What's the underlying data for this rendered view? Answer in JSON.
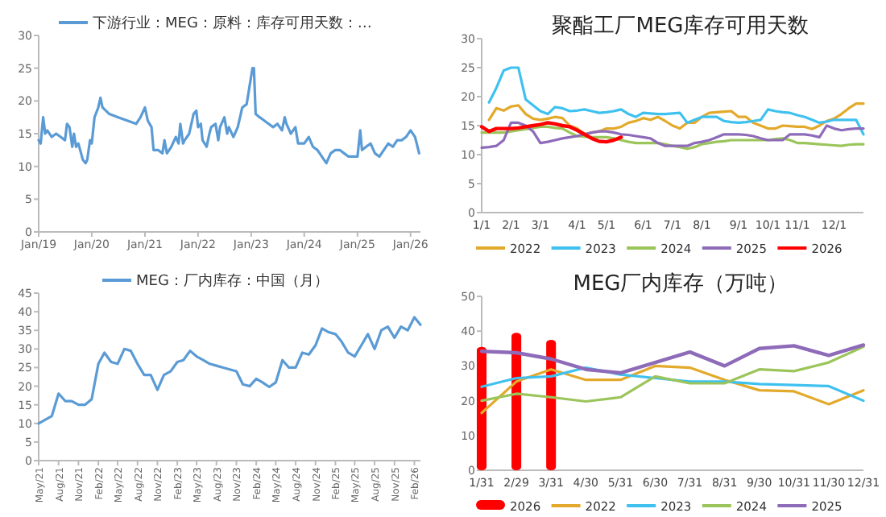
{
  "chart_data": [
    {
      "type": "line",
      "legend": "top",
      "ylim": [
        0,
        30
      ],
      "yticks": [
        0,
        5,
        10,
        15,
        20,
        25,
        30
      ],
      "xlim": [
        "2019-01-01",
        "2026-03-10"
      ],
      "xticks": [
        {
          "value": "2019-01-01",
          "label": "Jan/19"
        },
        {
          "value": "2020-01-01",
          "label": "Jan/20"
        },
        {
          "value": "2021-01-01",
          "label": "Jan/21"
        },
        {
          "value": "2022-01-01",
          "label": "Jan/22"
        },
        {
          "value": "2023-01-01",
          "label": "Jan/23"
        },
        {
          "value": "2024-01-01",
          "label": "Jan/24"
        },
        {
          "value": "2025-01-01",
          "label": "Jan/25"
        },
        {
          "value": "2026-01-01",
          "label": "Jan/26"
        }
      ],
      "series": [
        {
          "name": "下游行业：MEG：原料：库存可用天数：…",
          "color": "#5b9bd5",
          "x": [
            "2019-01-01",
            "2019-01-15",
            "2019-02-01",
            "2019-02-15",
            "2019-03-01",
            "2019-04-01",
            "2019-05-01",
            "2019-06-01",
            "2019-07-01",
            "2019-07-15",
            "2019-08-01",
            "2019-08-20",
            "2019-09-01",
            "2019-09-15",
            "2019-10-01",
            "2019-11-01",
            "2019-11-20",
            "2019-12-01",
            "2019-12-20",
            "2020-01-01",
            "2020-01-20",
            "2020-02-15",
            "2020-03-01",
            "2020-03-15",
            "2020-05-01",
            "2020-07-01",
            "2020-09-01",
            "2020-11-01",
            "2020-12-01",
            "2021-01-01",
            "2021-01-20",
            "2021-02-15",
            "2021-03-01",
            "2021-04-01",
            "2021-05-01",
            "2021-05-15",
            "2021-06-01",
            "2021-07-01",
            "2021-08-01",
            "2021-08-20",
            "2021-09-01",
            "2021-09-20",
            "2021-10-01",
            "2021-11-01",
            "2021-12-01",
            "2021-12-20",
            "2022-01-01",
            "2022-01-20",
            "2022-02-01",
            "2022-03-01",
            "2022-03-20",
            "2022-04-01",
            "2022-05-01",
            "2022-05-20",
            "2022-06-01",
            "2022-07-01",
            "2022-07-20",
            "2022-08-01",
            "2022-09-01",
            "2022-10-01",
            "2022-11-01",
            "2022-12-01",
            "2023-01-10",
            "2023-01-20",
            "2023-02-01",
            "2023-03-01",
            "2023-04-01",
            "2023-05-01",
            "2023-06-01",
            "2023-07-01",
            "2023-08-01",
            "2023-08-20",
            "2023-09-01",
            "2023-10-01",
            "2023-11-01",
            "2023-11-20",
            "2024-01-01",
            "2024-02-01",
            "2024-03-01",
            "2024-04-01",
            "2024-05-01",
            "2024-06-01",
            "2024-07-01",
            "2024-08-01",
            "2024-09-01",
            "2024-10-01",
            "2024-11-01",
            "2024-12-01",
            "2025-01-01",
            "2025-01-20",
            "2025-02-01",
            "2025-03-01",
            "2025-04-01",
            "2025-05-01",
            "2025-06-01",
            "2025-07-01",
            "2025-08-01",
            "2025-09-01",
            "2025-10-01",
            "2025-11-01",
            "2025-12-01",
            "2026-01-01",
            "2026-02-01",
            "2026-03-01"
          ],
          "values": [
            14,
            13.5,
            17.5,
            15,
            15.5,
            14.5,
            15,
            14.5,
            14,
            16.5,
            16,
            13,
            15,
            13,
            13.5,
            11,
            10.5,
            11,
            14,
            13.5,
            17.5,
            19,
            20.5,
            19,
            18,
            17.5,
            17,
            16.5,
            17.5,
            19,
            17,
            16,
            12.5,
            12.5,
            12,
            14,
            12,
            13,
            14.5,
            13.5,
            16.5,
            13.5,
            14,
            15,
            18,
            18.5,
            16,
            16.5,
            14,
            13,
            15,
            16,
            16.5,
            14,
            16,
            17.5,
            15,
            16,
            14.5,
            16,
            19,
            19.5,
            25,
            25,
            18,
            17.5,
            17,
            16.5,
            16,
            16.5,
            15.5,
            17.5,
            16.5,
            15,
            16,
            13.5,
            13.5,
            14.5,
            13,
            12.5,
            11.5,
            10.5,
            12,
            12.5,
            12.5,
            12,
            11.5,
            11.5,
            11.5,
            15.5,
            12.5,
            13,
            13.5,
            12,
            11.5,
            12.5,
            13.5,
            13,
            14,
            14,
            14.5,
            15.5,
            14.5,
            12
          ]
        }
      ]
    },
    {
      "type": "line",
      "title": "聚酯工厂MEG库存可用天数",
      "legend": "bottom",
      "ylim": [
        0,
        30
      ],
      "yticks": [
        0,
        5,
        10,
        15,
        20,
        25,
        30
      ],
      "categories": [
        "1/1",
        null,
        null,
        null,
        "2/1",
        null,
        null,
        null,
        "3/1",
        null,
        null,
        null,
        null,
        "4/1",
        null,
        null,
        null,
        "5/1",
        null,
        null,
        null,
        null,
        "6/1",
        null,
        null,
        null,
        "7/1",
        null,
        null,
        null,
        "8/1",
        null,
        null,
        null,
        null,
        "9/1",
        null,
        null,
        null,
        "10/1",
        null,
        null,
        null,
        "11/1",
        null,
        null,
        null,
        null,
        "12/1",
        null,
        null,
        null,
        null
      ],
      "series": [
        {
          "name": "2022",
          "color": "#e3a92b",
          "values": [
            null,
            16,
            18,
            17.6,
            18.3,
            18.5,
            17,
            16.2,
            16,
            16.2,
            16.5,
            16.3,
            15,
            14.5,
            13.5,
            13.8,
            14,
            14.5,
            14.5,
            14.8,
            15.5,
            15.8,
            16.3,
            16,
            16.5,
            15.8,
            15,
            14.5,
            15.5,
            15.5,
            16.5,
            17.2,
            17.3,
            17.4,
            17.5,
            16.5,
            16.5,
            15.5,
            15,
            14.5,
            14.5,
            15,
            14.9,
            14.8,
            14.8,
            14.4,
            15,
            15.8,
            16.2,
            17,
            18,
            18.8,
            18.8
          ]
        },
        {
          "name": "2023",
          "color": "#3fc1f0",
          "values": [
            null,
            19,
            21.5,
            24.5,
            25,
            25,
            19.5,
            18.5,
            17.5,
            17,
            18.2,
            18,
            17.5,
            17.6,
            17.8,
            17.5,
            17.2,
            17.3,
            17.5,
            17.8,
            17,
            16.5,
            17.2,
            17.1,
            17,
            17,
            17.1,
            17.2,
            15.5,
            16,
            16.5,
            16.5,
            16.5,
            15.8,
            15.6,
            15.5,
            15.6,
            15.8,
            16,
            17.8,
            17.5,
            17.3,
            17.2,
            16.8,
            16.5,
            16,
            15.5,
            15.7,
            16,
            16,
            16,
            16,
            13.5
          ]
        },
        {
          "name": "2024",
          "color": "#9bc55a",
          "values": [
            13.8,
            13.8,
            13.8,
            13.8,
            14,
            14.2,
            14.4,
            14.6,
            14.8,
            14.8,
            14.6,
            14.5,
            13.8,
            13.2,
            13.1,
            13,
            13,
            13,
            12.8,
            12.5,
            12.2,
            12,
            12,
            12,
            12,
            11.8,
            11.5,
            11.3,
            11,
            11.3,
            11.8,
            12,
            12.2,
            12.3,
            12.5,
            12.5,
            12.5,
            12.5,
            12.5,
            12.5,
            12.7,
            12.8,
            12.5,
            12,
            12,
            11.9,
            11.8,
            11.7,
            11.6,
            11.5,
            11.7,
            11.8,
            11.8
          ]
        },
        {
          "name": "2025",
          "color": "#8e6bb8",
          "values": [
            11.2,
            11.3,
            11.5,
            12.5,
            15.5,
            15.5,
            15,
            14,
            12,
            12.2,
            12.5,
            12.8,
            13,
            13.2,
            13.5,
            13.8,
            14,
            14,
            13.8,
            13.5,
            13.4,
            13.2,
            13,
            12.8,
            12,
            11.5,
            11.5,
            11.5,
            11.5,
            12,
            12.2,
            12.5,
            13,
            13.5,
            13.5,
            13.5,
            13.4,
            13.2,
            12.8,
            12.5,
            12.5,
            12.5,
            13.5,
            13.5,
            13.5,
            13.3,
            13,
            15,
            14.5,
            14.2,
            14.4,
            14.5,
            14.5
          ]
        },
        {
          "name": "2026",
          "color": "#ff0000",
          "values": [
            14.8,
            14,
            14.5,
            14.5,
            14.5,
            14.6,
            14.8,
            15,
            15.2,
            15.5,
            15.3,
            15,
            14.8,
            14.2,
            13.5,
            12.8,
            12.3,
            12.2,
            12.5,
            13,
            null,
            null,
            null,
            null,
            null,
            null,
            null,
            null,
            null,
            null,
            null,
            null,
            null,
            null,
            null,
            null,
            null,
            null,
            null,
            null,
            null,
            null,
            null,
            null,
            null,
            null,
            null,
            null,
            null,
            null,
            null,
            null,
            null
          ]
        }
      ]
    },
    {
      "type": "line",
      "legend": "top",
      "ylim": [
        0,
        45
      ],
      "yticks": [
        0,
        5,
        10,
        15,
        20,
        25,
        30,
        35,
        40,
        45
      ],
      "xlim": [
        "2021-05",
        "2026-03"
      ],
      "xticks": [
        {
          "value": "2021-05",
          "label": "May/21"
        },
        {
          "value": "2021-08",
          "label": "Aug/21"
        },
        {
          "value": "2021-11",
          "label": "Nov/21"
        },
        {
          "value": "2022-02",
          "label": "Feb/22"
        },
        {
          "value": "2022-05",
          "label": "May/22"
        },
        {
          "value": "2022-08",
          "label": "Aug/22"
        },
        {
          "value": "2022-11",
          "label": "Nov/22"
        },
        {
          "value": "2023-02",
          "label": "Feb/23"
        },
        {
          "value": "2023-05",
          "label": "May/23"
        },
        {
          "value": "2023-08",
          "label": "Aug/23"
        },
        {
          "value": "2023-11",
          "label": "Nov/23"
        },
        {
          "value": "2024-02",
          "label": "Feb/24"
        },
        {
          "value": "2024-05",
          "label": "May/24"
        },
        {
          "value": "2024-08",
          "label": "Aug/24"
        },
        {
          "value": "2024-11",
          "label": "Nov/24"
        },
        {
          "value": "2025-02",
          "label": "Feb/25"
        },
        {
          "value": "2025-05",
          "label": "May/25"
        },
        {
          "value": "2025-08",
          "label": "Aug/25"
        },
        {
          "value": "2025-11",
          "label": "Nov/25"
        },
        {
          "value": "2026-02",
          "label": "Feb/26"
        }
      ],
      "series": [
        {
          "name": "MEG：厂内库存：中国（月）",
          "color": "#5b9bd5",
          "x": [
            "2021-05",
            "2021-06",
            "2021-07",
            "2021-08",
            "2021-09",
            "2021-10",
            "2021-11",
            "2021-12",
            "2022-01",
            "2022-02",
            "2022-03",
            "2022-04",
            "2022-05",
            "2022-06",
            "2022-07",
            "2022-08",
            "2022-09",
            "2022-10",
            "2022-11",
            "2022-12",
            "2023-01",
            "2023-02",
            "2023-03",
            "2023-04",
            "2023-05",
            "2023-06",
            "2023-07",
            "2023-08",
            "2023-09",
            "2023-10",
            "2023-11",
            "2023-12",
            "2024-01",
            "2024-02",
            "2024-03",
            "2024-04",
            "2024-05",
            "2024-06",
            "2024-07",
            "2024-08",
            "2024-09",
            "2024-10",
            "2024-11",
            "2024-12",
            "2025-01",
            "2025-02",
            "2025-03",
            "2025-04",
            "2025-05",
            "2025-06",
            "2025-07",
            "2025-08",
            "2025-09",
            "2025-10",
            "2025-11",
            "2025-12",
            "2026-01",
            "2026-02",
            "2026-03"
          ],
          "values": [
            10,
            11,
            12,
            18,
            16,
            16,
            15,
            15,
            16.5,
            26,
            29,
            26.5,
            26,
            30,
            29.5,
            26,
            23,
            23,
            19,
            23,
            24,
            26.5,
            27,
            29.5,
            28,
            27,
            26,
            25.5,
            25,
            24.5,
            24,
            20.5,
            20,
            22,
            21,
            19.8,
            21,
            27,
            25,
            25,
            29,
            28.5,
            31,
            35.5,
            34.5,
            34,
            32,
            29,
            28,
            31,
            34,
            30,
            35,
            36,
            33,
            36,
            35,
            38.5,
            36.5
          ]
        }
      ]
    },
    {
      "type": "line",
      "title": "MEG厂内库存（万吨）",
      "legend": "bottom",
      "ylim": [
        0,
        50
      ],
      "yticks": [
        0,
        10,
        20,
        30,
        40,
        50
      ],
      "categories": [
        "1/31",
        "2/29",
        "3/31",
        "4/30",
        "5/31",
        "6/30",
        "7/31",
        "8/31",
        "9/30",
        "10/31",
        "11/30",
        "12/31"
      ],
      "series": [
        {
          "name": "2026",
          "type": "bar",
          "color": "#ff0000",
          "values": [
            35.5,
            39.5,
            37.5,
            null,
            null,
            null,
            null,
            null,
            null,
            null,
            null,
            null
          ]
        },
        {
          "name": "2022",
          "color": "#e3a92b",
          "values": [
            16.5,
            25.5,
            29,
            26,
            26,
            30,
            29.5,
            26,
            23,
            22.7,
            19,
            23
          ]
        },
        {
          "name": "2023",
          "color": "#3fc1f0",
          "values": [
            24,
            26.5,
            27,
            29.5,
            27.5,
            26.5,
            25.5,
            25.5,
            24.8,
            24.5,
            24.2,
            20
          ]
        },
        {
          "name": "2024",
          "color": "#9bc55a",
          "values": [
            20,
            22,
            21,
            19.8,
            21,
            27,
            25,
            25,
            29,
            28.5,
            31,
            35.5
          ]
        },
        {
          "name": "2025",
          "color": "#8e6bb8",
          "values": [
            34.2,
            33.8,
            32,
            29,
            28,
            31,
            34,
            30,
            35,
            35.8,
            33,
            36
          ]
        }
      ]
    }
  ]
}
